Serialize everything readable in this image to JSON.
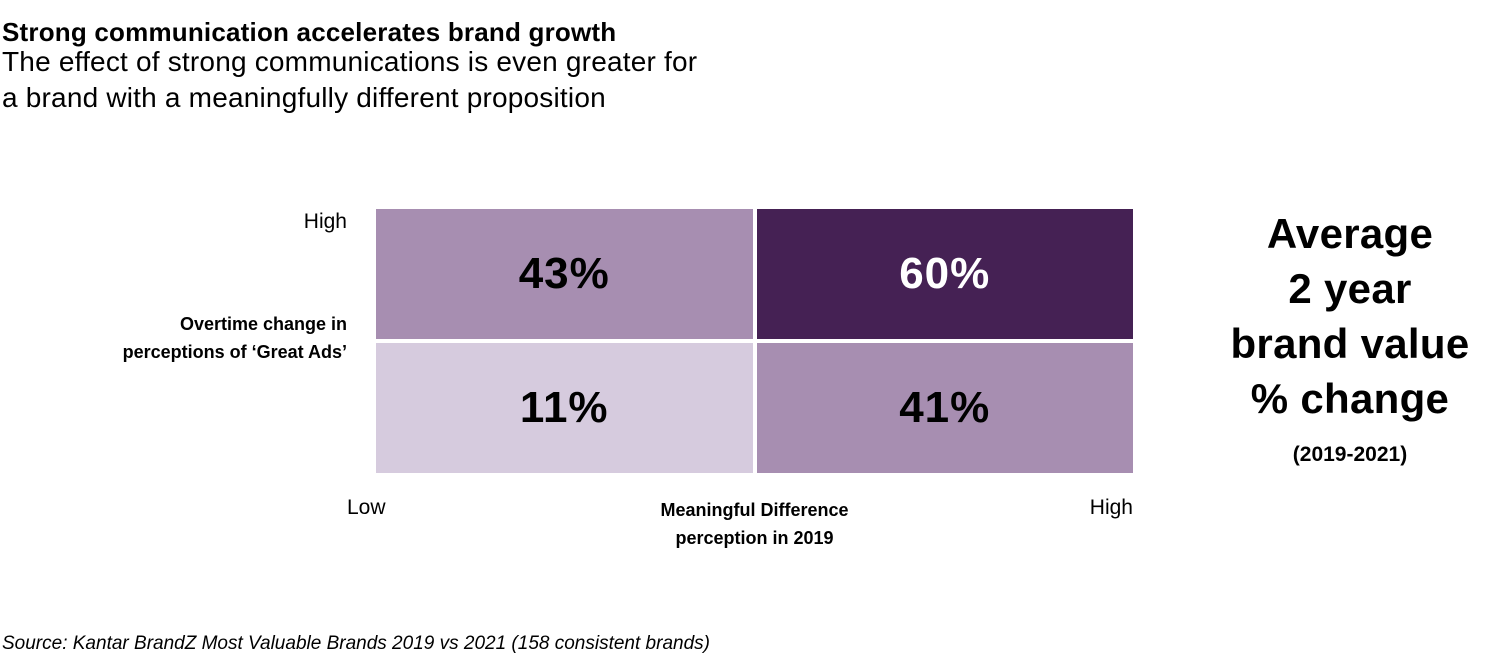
{
  "page": {
    "title": "Strong communication accelerates brand growth",
    "subtitle_lines": [
      "The effect of strong communications is even greater for",
      "a brand with a meaningfully different proposition"
    ],
    "source": "Source: Kantar BrandZ Most Valuable Brands 2019 vs 2021 (158 consistent brands)"
  },
  "colors": {
    "purple_dark": "#452154",
    "purple_mid": "#a78eb1",
    "purple_light": "#d6cbde",
    "text_black": "#000000",
    "text_white": "#ffffff",
    "background": "#ffffff"
  },
  "matrix": {
    "y_axis": {
      "top_label": "High",
      "title_lines": [
        "Overtime change in",
        "perceptions of ‘Great Ads’"
      ]
    },
    "x_axis": {
      "left_label": "Low",
      "right_label": "High",
      "title_lines": [
        "Meaningful Difference",
        "perception in 2019"
      ]
    },
    "cells": [
      {
        "position": "top-left",
        "value": "43%",
        "bg": "#a78eb1",
        "color": "#000000"
      },
      {
        "position": "top-right",
        "value": "60%",
        "bg": "#452154",
        "color": "#ffffff"
      },
      {
        "position": "bottom-left",
        "value": "11%",
        "bg": "#d6cbde",
        "color": "#000000"
      },
      {
        "position": "bottom-right",
        "value": "41%",
        "bg": "#a78eb1",
        "color": "#000000"
      }
    ]
  },
  "annotation": {
    "lines": [
      "Average",
      "2 year",
      "brand value",
      "% change"
    ],
    "period": "(2019-2021)"
  },
  "chart_data": {
    "type": "heatmap",
    "title": "Strong communication accelerates brand growth",
    "subtitle": "The effect of strong communications is even greater for a brand with a meaningfully different proposition",
    "value_label": "Average 2 year brand value % change (2019-2021)",
    "xlabel": "Meaningful Difference perception in 2019",
    "ylabel": "Overtime change in perceptions of ‘Great Ads’",
    "x_categories": [
      "Low",
      "High"
    ],
    "y_top_label": "High",
    "rows_top_to_bottom": [
      {
        "values_pct": [
          43,
          60
        ]
      },
      {
        "values_pct": [
          11,
          41
        ]
      }
    ],
    "unit": "%",
    "legend_position": "none",
    "grid": false,
    "source": "Kantar BrandZ Most Valuable Brands 2019 vs 2021 (158 consistent brands)"
  }
}
